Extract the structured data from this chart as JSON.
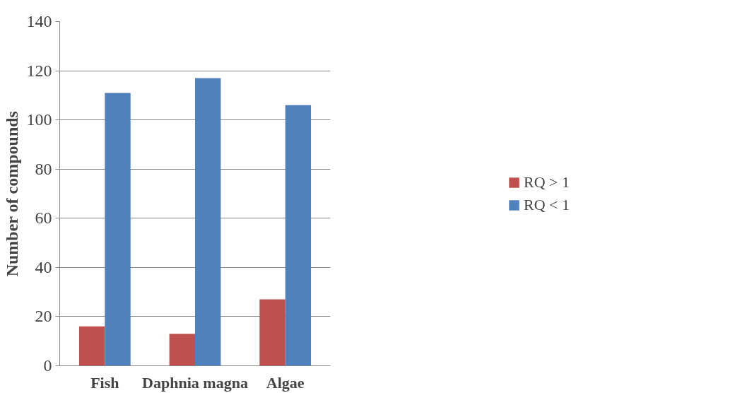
{
  "chart_data": {
    "type": "bar",
    "ylabel": "Number of compounds",
    "categories": [
      "Fish",
      "Daphnia magna",
      "Algae"
    ],
    "series": [
      {
        "name": "RQ > 1",
        "color": "#c0504d",
        "values": [
          16,
          13,
          27
        ]
      },
      {
        "name": "RQ < 1",
        "color": "#4f81bd",
        "values": [
          111,
          117,
          106
        ]
      }
    ],
    "ylim": [
      0,
      140
    ],
    "yticks": [
      0,
      20,
      40,
      60,
      80,
      100,
      120,
      140
    ],
    "grid": "y",
    "legend": "right"
  }
}
